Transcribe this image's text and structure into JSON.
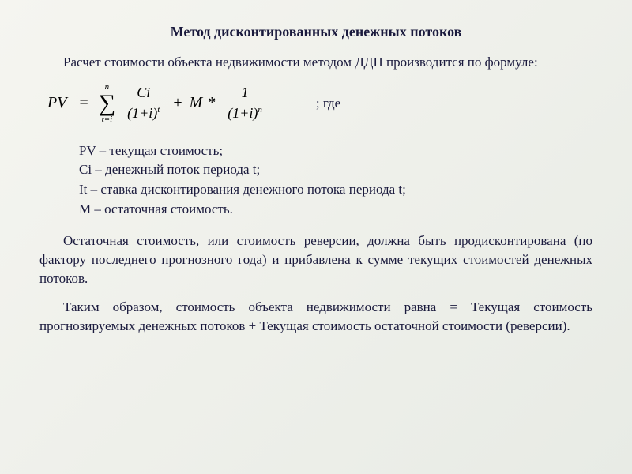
{
  "title": "Метод дисконтированных денежных потоков",
  "intro": "Расчет стоимости объекта недвижимости методом ДДП производится по формуле:",
  "formula": {
    "lhs": "PV",
    "sum_upper": "n",
    "sum_lower": "t=i",
    "frac1_num": "Ci",
    "frac1_den_base": "(1+i)",
    "frac1_den_exp": "t",
    "plus": "+",
    "m_term": "M",
    "star": "*",
    "frac2_num": "1",
    "frac2_den_base": "(1+i)",
    "frac2_den_exp": "n"
  },
  "where_label": "; где",
  "definitions": {
    "pv": "PV – текущая стоимость;",
    "ci": "Ci – денежный поток периода t;",
    "it": "It – ставка дисконтирования денежного потока периода t;",
    "m": "M – остаточная стоимость."
  },
  "para1": "Остаточная стоимость, или стоимость реверсии, должна быть продисконтирована (по фактору последнего прогнозного года) и прибавлена к сумме текущих стоимостей денежных потоков.",
  "para2": "Таким образом, стоимость объекта недвижимости равна = Текущая стоимость прогнозируемых денежных потоков + Текущая стоимость остаточной стоимости (реверсии).",
  "styling": {
    "background_gradient": [
      "#f5f5f0",
      "#e8ebe5"
    ],
    "text_color": "#1a1a3d",
    "title_fontsize": 18,
    "body_fontsize": 17,
    "formula_fontsize": 20,
    "font_family": "Times New Roman",
    "text_indent": 30
  }
}
